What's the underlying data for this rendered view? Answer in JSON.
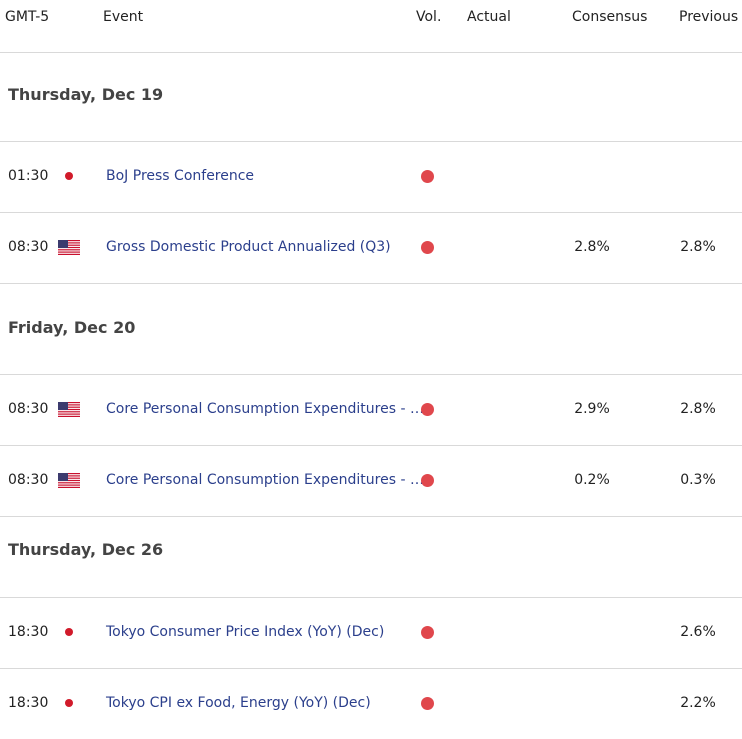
{
  "header": {
    "time_zone": "GMT-5",
    "event": "Event",
    "vol": "Vol.",
    "actual": "Actual",
    "consensus": "Consensus",
    "previous": "Previous"
  },
  "days": [
    {
      "date": "Thursday, Dec 19",
      "events": [
        {
          "time": "01:30",
          "event": "BoJ Press Conference"
        },
        {
          "time": "08:30",
          "event": "Gross Domestic Product Annualized (Q3)",
          "consensus": "2.8%",
          "previous": "2.8%"
        }
      ]
    },
    {
      "date": "Friday, Dec 20",
      "events": [
        {
          "time": "08:30",
          "event": "Core Personal Consumption Expenditures - …",
          "consensus": "2.9%",
          "previous": "2.8%"
        },
        {
          "time": "08:30",
          "event": "Core Personal Consumption Expenditures - …",
          "consensus": "0.2%",
          "previous": "0.3%"
        }
      ]
    },
    {
      "date": "Thursday, Dec 26",
      "events": [
        {
          "time": "18:30",
          "event": "Tokyo Consumer Price Index (YoY) (Dec)",
          "previous": "2.6%"
        },
        {
          "time": "18:30",
          "event": "Tokyo CPI ex Food, Energy (YoY) (Dec)",
          "previous": "2.2%"
        }
      ]
    }
  ]
}
